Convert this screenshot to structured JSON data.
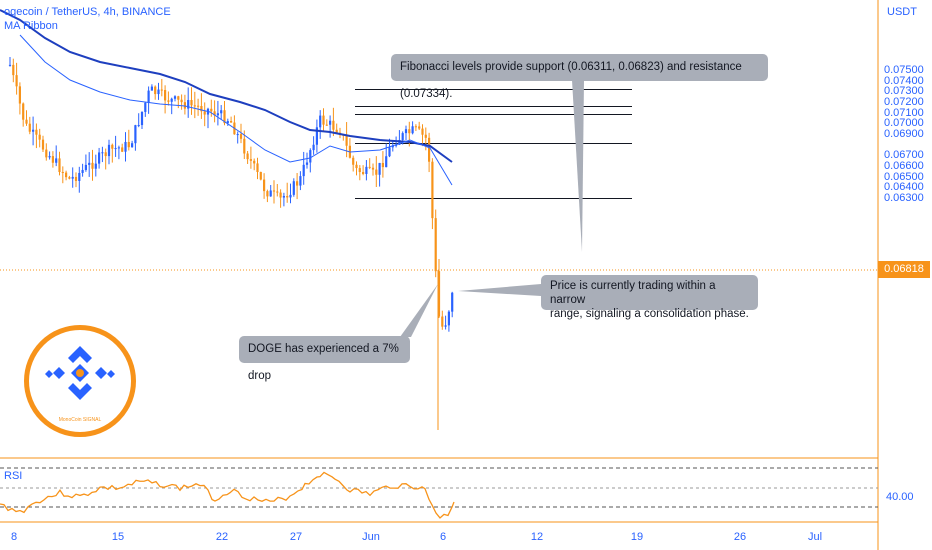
{
  "header": {
    "symbol_line": "ogecoin / TetherUS, 4h, BINANCE",
    "indicator": "MA Ribbon"
  },
  "price_axis": {
    "currency": "USDT",
    "ticks": [
      "0.07500",
      "0.07400",
      "0.07300",
      "0.07200",
      "0.07100",
      "0.07000",
      "0.06900",
      "0.06700",
      "0.06600",
      "0.06500",
      "0.06400",
      "0.06300"
    ],
    "current_price": "0.06818"
  },
  "date_axis": {
    "ticks": [
      "8",
      "15",
      "22",
      "27",
      "Jun",
      "6",
      "12",
      "19",
      "26",
      "Jul"
    ]
  },
  "rsi": {
    "label": "RSI",
    "level_value": "40.00"
  },
  "fibonacci": {
    "levels": [
      0.07334,
      0.07175,
      0.071,
      0.06823,
      0.06311
    ]
  },
  "annotations": {
    "fib_note": "Fibonacci levels provide support (0.06311, 0.06823) and resistance (0.07334).",
    "range_note_line1": "Price is currently trading within a narrow",
    "range_note_line2": "range, signaling a consolidation phase.",
    "drop_note": "DOGE has experienced a 7% drop"
  },
  "logo": {
    "text": "MonoCoin SIGNAL"
  },
  "colors": {
    "up": "#2962ff",
    "down": "#f7931a",
    "ma_thick": "#1e3fbf",
    "ma_thin": "#2962ff",
    "axis_text": "#2962ff",
    "callout_bg": "#a9aeb8",
    "rsi_line": "#f7931a"
  }
}
